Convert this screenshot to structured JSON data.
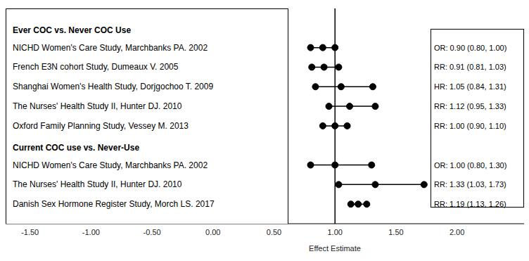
{
  "chart_data": {
    "type": "forest",
    "xlabel": "Effect Estimate",
    "xlim": [
      -1.7,
      2.55
    ],
    "xticks": [
      {
        "value": -1.5,
        "label": "-1.50"
      },
      {
        "value": -1.0,
        "label": "-1.00"
      },
      {
        "value": -0.5,
        "label": "-0.50"
      },
      {
        "value": 0,
        "label": "0.00"
      },
      {
        "value": 0.5,
        "label": "0.50"
      },
      {
        "value": 1.0,
        "label": "1.00"
      },
      {
        "value": 1.5,
        "label": "1.50"
      },
      {
        "value": 2.0,
        "label": "2.00"
      }
    ],
    "reference_line": 1.0,
    "color": "#000000",
    "marker": "circle",
    "groups": [
      {
        "title": "Ever COC vs. Never COC Use",
        "rows": [
          {
            "label": "NICHD Women's Care Study, Marchbanks PA. 2002",
            "estimate": 0.9,
            "ci": [
              0.8,
              1.0
            ],
            "value_label": "OR: 0.90 (0.80, 1.00)"
          },
          {
            "label": "French E3N cohort Study, Dumeaux V. 2005",
            "estimate": 0.91,
            "ci": [
              0.81,
              1.03
            ],
            "value_label": "RR: 0.91 (0.81, 1.03)"
          },
          {
            "label": "Shanghai Women's Health Study, Dorjgochoo T. 2009",
            "estimate": 1.05,
            "ci": [
              0.84,
              1.31
            ],
            "value_label": "HR: 1.05 (0.84, 1.31)"
          },
          {
            "label": "The Nurses' Health Study II, Hunter DJ. 2010",
            "estimate": 1.12,
            "ci": [
              0.95,
              1.33
            ],
            "value_label": "RR: 1.12 (0.95, 1.33)"
          },
          {
            "label": "Oxford Family Planning Study, Vessey M. 2013",
            "estimate": 1.0,
            "ci": [
              0.9,
              1.1
            ],
            "value_label": "RR: 1.00 (0.90, 1.10)"
          }
        ]
      },
      {
        "title": "Current COC use vs. Never-Use",
        "rows": [
          {
            "label": "NICHD Women's Care Study, Marchbanks PA. 2002",
            "estimate": 1.0,
            "ci": [
              0.8,
              1.3
            ],
            "value_label": "OR: 1.00 (0.80, 1.30)"
          },
          {
            "label": "The Nurses' Health Study II, Hunter DJ. 2010",
            "estimate": 1.33,
            "ci": [
              1.03,
              1.73
            ],
            "value_label": "RR: 1.33 (1.03, 1.73)"
          },
          {
            "label": "Danish Sex Hormone Register Study, Morch LS. 2017",
            "estimate": 1.19,
            "ci": [
              1.13,
              1.26
            ],
            "value_label": "RR: 1.19 (1.13, 1.26)"
          }
        ]
      }
    ]
  }
}
